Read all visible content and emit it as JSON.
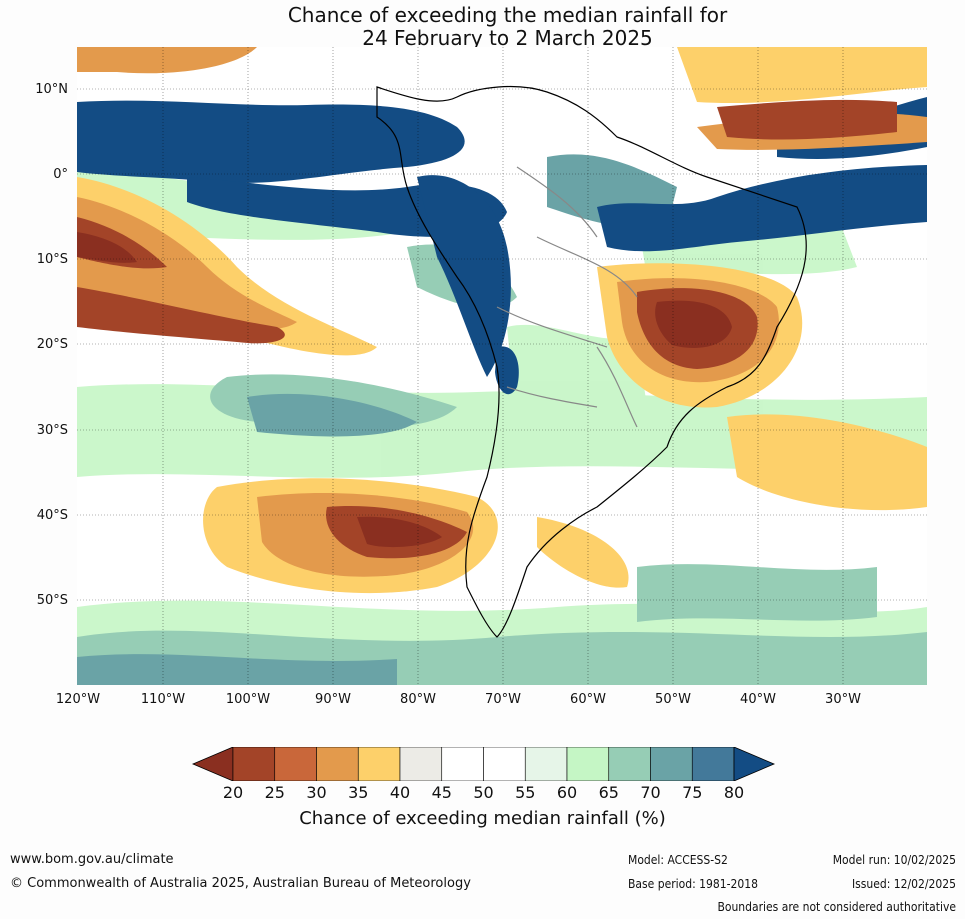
{
  "title": {
    "line1": "Chance of exceeding the median rainfall for",
    "line2": "24 February to 2 March 2025"
  },
  "map": {
    "lat_labels": [
      "10°N",
      "0°",
      "10°S",
      "20°S",
      "30°S",
      "40°S",
      "50°S"
    ],
    "lon_labels": [
      "120°W",
      "110°W",
      "100°W",
      "90°W",
      "80°W",
      "70°W",
      "60°W",
      "50°W",
      "40°W",
      "30°W"
    ]
  },
  "colorbar": {
    "ticks": [
      "20",
      "25",
      "30",
      "35",
      "40",
      "45",
      "50",
      "55",
      "60",
      "65",
      "70",
      "75",
      "80"
    ],
    "colors": [
      "#a34428",
      "#c9673a",
      "#e39a4c",
      "#fdd06a",
      "#ecebe6",
      "#ffffff",
      "#ffffff",
      "#e6f5e8",
      "#c5f6c5",
      "#96cdb5",
      "#6aa3a6",
      "#43799a"
    ],
    "below_color": "#8a2f20",
    "above_color": "#134c84",
    "label": "Chance of exceeding median rainfall (%)"
  },
  "footer": {
    "website": "www.bom.gov.au/climate",
    "copyright": "© Commonwealth of Australia 2025, Australian Bureau of Meteorology",
    "model": "Model: ACCESS-S2",
    "base_period": "Base period: 1981-2018",
    "model_run": "Model run: 10/02/2025",
    "issued": "Issued: 12/02/2025",
    "disclaimer": "Boundaries are not considered authoritative"
  }
}
